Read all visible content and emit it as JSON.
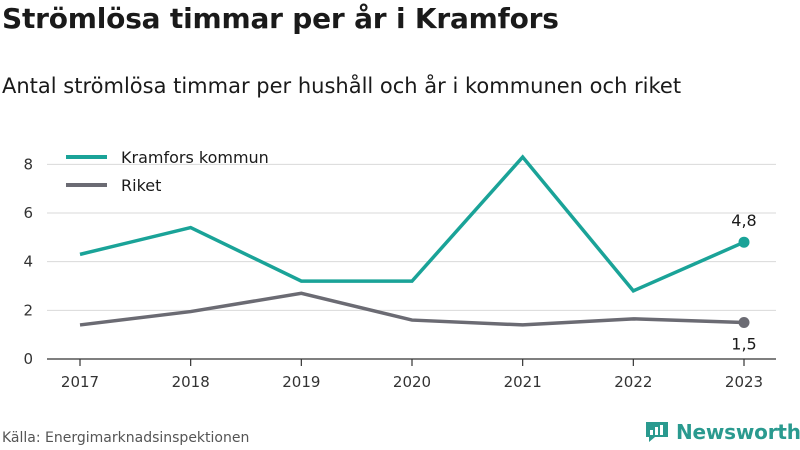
{
  "header": {
    "title": "Strömlösa timmar per år i Kramfors",
    "subtitle": "Antal strömlösa timmar per hushåll och år i kommunen och riket"
  },
  "footer": {
    "source": "Källa: Energimarknadsinspektionen",
    "brand": "Newsworthy",
    "brand_icon": "newsworthy-logo-icon"
  },
  "chart_data": {
    "type": "line",
    "categories": [
      "2017",
      "2018",
      "2019",
      "2020",
      "2021",
      "2022",
      "2023"
    ],
    "series": [
      {
        "name": "Kramfors kommun",
        "color": "#1aa398",
        "values": [
          4.3,
          5.4,
          3.2,
          3.2,
          8.3,
          2.8,
          4.8
        ],
        "end_label": "4,8"
      },
      {
        "name": "Riket",
        "color": "#6b6b73",
        "values": [
          1.4,
          1.95,
          2.7,
          1.6,
          1.4,
          1.65,
          1.5
        ],
        "end_label": "1,5"
      }
    ],
    "ylim": [
      0,
      9
    ],
    "yticks": [
      0,
      2,
      4,
      6,
      8
    ],
    "xlabel": "",
    "ylabel": "",
    "grid": true,
    "legend_position": "top-left"
  }
}
